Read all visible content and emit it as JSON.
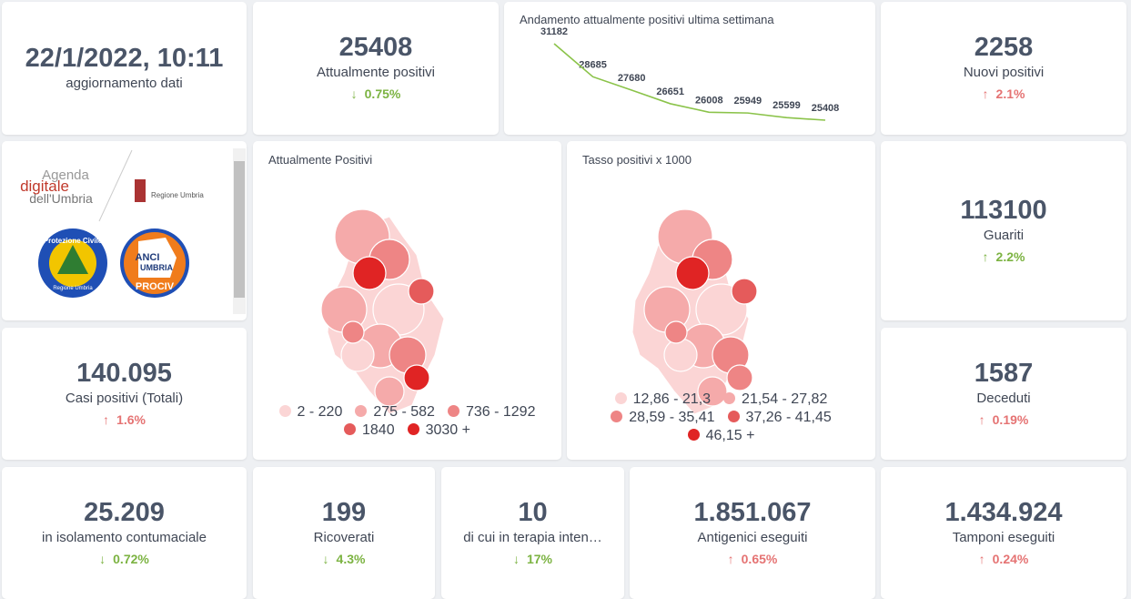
{
  "update": {
    "value": "22/1/2022, 10:11",
    "label": "aggiornamento dati"
  },
  "cards": [
    {
      "value": "25408",
      "label": "Attualmente positivi",
      "change": "0.75%"
    },
    {
      "value": "2258",
      "label": "Nuovi positivi",
      "change": "2.1%"
    },
    {
      "value": "113100",
      "label": "Guariti",
      "change": "2.2%"
    },
    {
      "value": "140.095",
      "label": "Casi positivi (Totali)",
      "change": "1.6%"
    },
    {
      "value": "1587",
      "label": "Deceduti",
      "change": "0.19%"
    },
    {
      "value": "25.209",
      "label": "in isolamento contumaciale",
      "change": "0.72%"
    },
    {
      "value": "199",
      "label": "Ricoverati",
      "change": "4.3%"
    },
    {
      "value": "10",
      "label": "di cui in terapia inten…",
      "change": "17%"
    },
    {
      "value": "1.851.067",
      "label": "Antigenici eseguiti",
      "change": "0.65%"
    },
    {
      "value": "1.434.924",
      "label": "Tamponi eseguiti",
      "change": "0.24%"
    }
  ],
  "chart_data": {
    "type": "line",
    "title": "Andamento attualmente positivi ultima settimana",
    "values": [
      31182,
      28685,
      27680,
      26651,
      26008,
      25949,
      25599,
      25408
    ],
    "color": "#8bc34a"
  },
  "logos": {
    "agenda": [
      "Agenda",
      "digitale",
      "dell'Umbria"
    ],
    "regione": "Regione Umbria",
    "protezione": [
      "Protezione Civile",
      "Regione Umbria"
    ],
    "anci": [
      "ANCI",
      "UMBRIA",
      "PROCIV"
    ]
  },
  "maps": [
    {
      "title": "Attualmente Positivi",
      "legend": [
        {
          "label": "2 - 220",
          "color": "#fbd5d5"
        },
        {
          "label": "275 - 582",
          "color": "#f5aaaa"
        },
        {
          "label": "736 - 1292",
          "color": "#ee8585"
        },
        {
          "label": "1840",
          "color": "#e55b5b"
        },
        {
          "label": "3030 +",
          "color": "#e02424"
        }
      ]
    },
    {
      "title": "Tasso positivi x 1000",
      "legend": [
        {
          "label": "12,86 - 21,3",
          "color": "#fbd5d5"
        },
        {
          "label": "21,54 - 27,82",
          "color": "#f5aaaa"
        },
        {
          "label": "28,59 - 35,41",
          "color": "#ee8585"
        },
        {
          "label": "37,26 - 41,45",
          "color": "#e55b5b"
        },
        {
          "label": "46,15 +",
          "color": "#e02424"
        }
      ]
    }
  ]
}
